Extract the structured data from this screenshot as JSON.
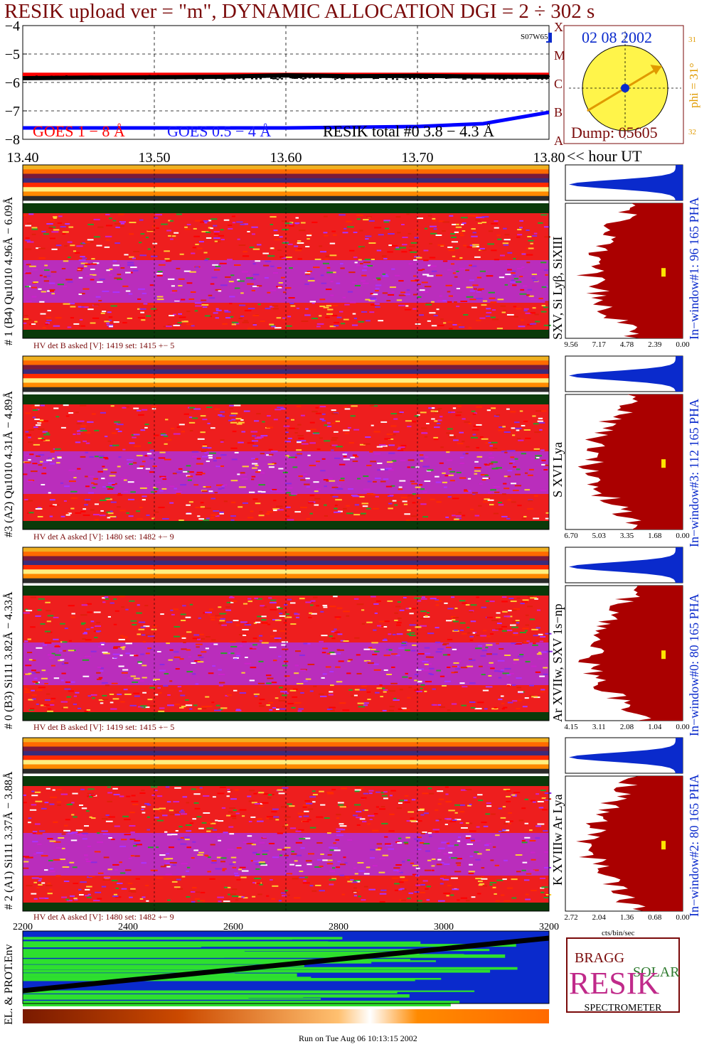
{
  "header": {
    "title": "RESIK upload ver = \"m\", DYNAMIC ALLOCATION  DGI =   2 ÷ 302 s"
  },
  "goes_panel": {
    "yticks": [
      "−4",
      "−5",
      "−6",
      "−7",
      "−8"
    ],
    "labels": [
      "GOES 1 − 8 Å",
      "GOES 0.5 − 4 Å",
      "RESIK total #0  3.8 − 4.3 Å"
    ],
    "corner_tag": "S07W65",
    "side_letters": [
      "X",
      "M",
      "C",
      "B",
      "A"
    ],
    "colors": {
      "goes_1_8": "#ff0000",
      "goes_05_4": "#0000ff",
      "resik_total": "#000000"
    }
  },
  "sun_panel": {
    "date": "02 08 2002",
    "dump": "Dump: 05605",
    "phi_label": "phi = 31°",
    "tick_top": "31",
    "tick_bottom": "32",
    "phi_deg": 31
  },
  "time_axis": {
    "ticks": [
      "13.40",
      "13.50",
      "13.60",
      "13.70",
      "13.80"
    ],
    "unit": "<< hour UT"
  },
  "channels": [
    {
      "left_label": "# 1 (B4) Qu1010 4.96Å − 6.09Å",
      "hv_text": "HV det B asked [V]:  1419 set:  1415  +−    5",
      "line_label": "SXV, Si Lyβ, SiXIII",
      "window_label": "In−window#1:   96 165  PHA",
      "x_ticks": [
        "9.56",
        "7.17",
        "4.78",
        "2.39",
        "0.00"
      ]
    },
    {
      "left_label": "#3 (A2) Qu1010  4.31Å − 4.89Å",
      "hv_text": "HV det A asked [V]:  1480 set:  1482  +−    9",
      "line_label": "S XVI Lya",
      "window_label": "In−window#3:  112 165  PHA",
      "x_ticks": [
        "6.70",
        "5.03",
        "3.35",
        "1.68",
        "0.00"
      ]
    },
    {
      "left_label": "# 0 (B3) Si111  3.82Å − 4.33Å",
      "hv_text": "HV det B asked [V]:  1419 set:  1415  +−    5",
      "line_label": "Ar XVIIw,  SXV 1s−np",
      "window_label": "In−window#0:   80 165  PHA",
      "x_ticks": [
        "4.15",
        "3.11",
        "2.08",
        "1.04",
        "0.00"
      ]
    },
    {
      "left_label": "# 2 (A1) Si111  3.37Å − 3.88Å",
      "hv_text": "HV det A asked [V]:  1480 set:  1482  +−    9",
      "line_label": "K XVIIIw  Ar Lya",
      "window_label": "In−window#2:   80 165  PHA",
      "x_ticks": [
        "2.72",
        "2.04",
        "1.36",
        "0.68",
        "0.00"
      ]
    }
  ],
  "bottom_axis": {
    "ticks": [
      "2200",
      "2400",
      "2600",
      "2800",
      "3000",
      "3200"
    ],
    "xunit": "cts/bin/sec",
    "env_label": "EL. & PROT.Env"
  },
  "logo": {
    "bragg": "BRAGG",
    "solar": "SOLAR",
    "main": "RESIK",
    "bottom": "SPECTROMETER"
  },
  "footer": "Run on Tue Aug 06 10:13:15 2002",
  "chart_data": {
    "type": "line",
    "title": "RESIK upload ver = \"m\", DYNAMIC ALLOCATION  DGI =   2 ÷ 302 s",
    "xlabel": "<< hour UT",
    "xlim": [
      13.4,
      13.8
    ],
    "ylim": [
      -8,
      -4
    ],
    "series": [
      {
        "name": "GOES 1 − 8 Å",
        "x": [
          13.4,
          13.5,
          13.6,
          13.7,
          13.8
        ],
        "values": [
          -5.72,
          -5.72,
          -5.72,
          -5.72,
          -5.72
        ]
      },
      {
        "name": "GOES 0.5 − 4 Å",
        "x": [
          13.4,
          13.5,
          13.6,
          13.7,
          13.75,
          13.8
        ],
        "values": [
          -7.6,
          -7.6,
          -7.6,
          -7.55,
          -7.45,
          -7.05
        ]
      },
      {
        "name": "RESIK total #0  3.8 − 4.3 Å",
        "x": [
          13.4,
          13.45,
          13.5,
          13.55,
          13.6,
          13.65,
          13.7,
          13.75,
          13.8
        ],
        "values": [
          -5.85,
          -5.83,
          -5.82,
          -5.8,
          -5.75,
          -5.78,
          -5.77,
          -5.79,
          -5.8
        ]
      }
    ]
  }
}
